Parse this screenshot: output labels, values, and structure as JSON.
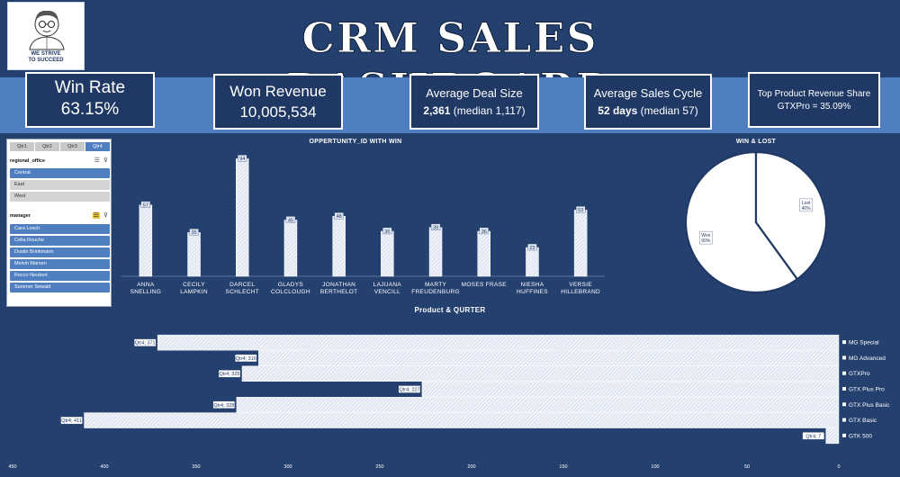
{
  "header": {
    "title": "CRM SALES DASHBOARD",
    "logo_text": "WE STRIVE\nTO SUCCEED"
  },
  "kpis": {
    "win_rate": {
      "label": "Win Rate",
      "value": "63.15%"
    },
    "won_revenue": {
      "label": "Won Revenue",
      "value": "10,005,534"
    },
    "avg_deal": {
      "label": "Average Deal Size",
      "value_bold": "2,361",
      "value_rest": " (median 1,117)"
    },
    "avg_cycle": {
      "label": "Average Sales Cycle",
      "value_bold": "52 days",
      "value_rest": " (median 57)"
    },
    "top_product": {
      "label": "Top Product Revenue Share",
      "value": "GTXPro = 35.09%"
    }
  },
  "slicers": {
    "quarters": [
      {
        "label": "Qtr1",
        "selected": false
      },
      {
        "label": "Qtr2",
        "selected": false
      },
      {
        "label": "Qtr3",
        "selected": false
      },
      {
        "label": "Qtr4",
        "selected": true
      }
    ],
    "regional_office": {
      "header": "regional_office",
      "items": [
        {
          "label": "Central",
          "selected": true
        },
        {
          "label": "East",
          "selected": false
        },
        {
          "label": "West",
          "selected": false
        }
      ]
    },
    "manager": {
      "header": "manager",
      "items": [
        {
          "label": "Cara Losch",
          "selected": true
        },
        {
          "label": "Celia Rouche",
          "selected": true
        },
        {
          "label": "Dustin Brinkmann",
          "selected": true
        },
        {
          "label": "Melvin Marxen",
          "selected": true
        },
        {
          "label": "Rocco Neubert",
          "selected": true
        },
        {
          "label": "Summer Sewald",
          "selected": true
        }
      ]
    },
    "icons": {
      "multiselect": "multiselect-icon",
      "clear_filter": "clear-filter-icon"
    }
  },
  "chart_titles": {
    "opportunity": "OPPERTUNITY_ID  WITH WIN",
    "win_lost": "WIN & LOST",
    "product_quarter": "Product & QURTER"
  },
  "chart_data": [
    {
      "type": "bar",
      "title": "OPPERTUNITY_ID  WITH WIN",
      "categories": [
        "ANNA SNELLING",
        "CECILY LAMPKIN",
        "DARCEL SCHLECHT",
        "GLADYS COLCLOUGH",
        "JONATHAN BERTHELOT",
        "LAJUANA VENCILL",
        "MARTY FREUDENBURG",
        "MOSES FRASE",
        "NIESHA HUFFINES",
        "VERSIE HILLEBRAND"
      ],
      "values": [
        57,
        35,
        94,
        45,
        48,
        36,
        39,
        36,
        23,
        53
      ],
      "ylim": [
        0,
        100
      ],
      "fill": "hatched-white"
    },
    {
      "type": "pie",
      "title": "WIN & LOST",
      "labels": [
        "Won",
        "Lost"
      ],
      "values": [
        60,
        40
      ],
      "value_labels": [
        "Won\n60%",
        "Lost\n40%"
      ],
      "colors": [
        "#ffffff",
        "#ffffff"
      ],
      "outline": "#1f3864"
    },
    {
      "type": "bar",
      "orientation": "horizontal-reversed",
      "title": "Product & QURTER",
      "categories": [
        "MG Special",
        "MG Advanced",
        "GTXPro",
        "GTX Plus Pro",
        "GTX Plus Basic",
        "GTX Basic",
        "GTK 500"
      ],
      "values": [
        371,
        316,
        325,
        227,
        328,
        411,
        7
      ],
      "value_labels": [
        "Qtr4; 371",
        "Qtr4; 316",
        "Qtr4; 325",
        "Qtr4; 227",
        "Qtr4; 328",
        "Qtr4; 411",
        "Qtr4; 7"
      ],
      "xlim": [
        0,
        450
      ],
      "xticks": [
        "450",
        "400",
        "350",
        "300",
        "250",
        "200",
        "150",
        "100",
        "50",
        "0"
      ],
      "legend_position": "right"
    }
  ]
}
